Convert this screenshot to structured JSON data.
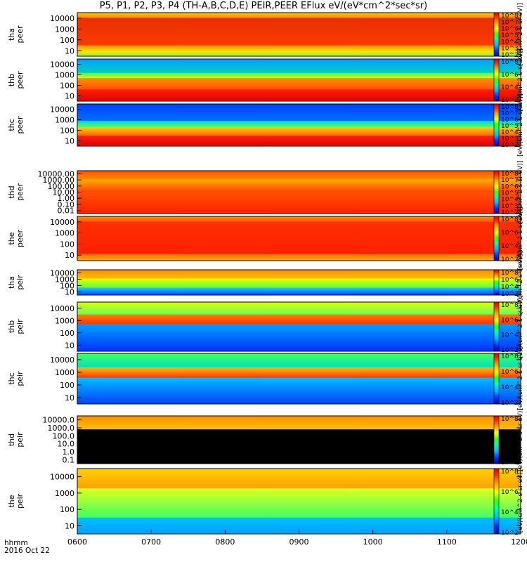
{
  "title": "P5, P1, P2, P3, P4 (TH-A,B,C,D,E) PEIR,PEER EFlux eV/(eV*cm^2*sec*sr)",
  "x_axis": {
    "label_line1": "hhmm",
    "label_line2": "2016 Oct 22",
    "ticks": [
      "0600",
      "0700",
      "0800",
      "0900",
      "1000",
      "1100",
      "1200"
    ]
  },
  "colors": {
    "axis": "#000000",
    "black_mask": "#000000"
  },
  "chart_data": [
    {
      "type": "heatmap",
      "ylabel": "tha peer",
      "yticks": [
        "10000",
        "1000",
        "100",
        "10"
      ],
      "ylog": true,
      "ylim": [
        7,
        20000
      ],
      "colorbar_title": "[eV/(cm^2-s-sr-eV)]",
      "colorbar_ticks": [
        "10^8",
        "10^7",
        "10^6",
        "10^5",
        "10^4",
        "10^3",
        "10^2"
      ],
      "clim_log": [
        2,
        8
      ],
      "xlim": [
        "0600",
        "1200"
      ]
    },
    {
      "type": "heatmap",
      "ylabel": "thb peer",
      "yticks": [
        "10000",
        "1000",
        "100",
        "10"
      ],
      "ylog": true,
      "ylim": [
        7,
        20000
      ],
      "colorbar_title": "[eV/(cm^2-s-sr-eV)]",
      "colorbar_ticks": [
        "10^8",
        "10^6",
        "10^4",
        "10^2"
      ],
      "clim_log": [
        2,
        8
      ],
      "xlim": [
        "0600",
        "1200"
      ]
    },
    {
      "type": "heatmap",
      "ylabel": "thc peer",
      "yticks": [
        "10000",
        "1000",
        "100",
        "10"
      ],
      "ylog": true,
      "ylim": [
        7,
        20000
      ],
      "colorbar_title": "[eV/(cm^2-s-sr-eV)]",
      "colorbar_ticks": [
        "10^8",
        "10^7",
        "10^6",
        "10^5",
        "10^4",
        "10^3",
        "10^2"
      ],
      "clim_log": [
        2,
        8
      ],
      "xlim": [
        "0600",
        "1200"
      ]
    },
    {
      "type": "heatmap",
      "ylabel": "thd peer",
      "yticks": [
        "10000.00",
        "1000.00",
        "100.00",
        "10.00",
        "1.00",
        "0.10",
        "0.01"
      ],
      "ylog": true,
      "ylim": [
        0.008,
        25000
      ],
      "colorbar_title": "[eV/(cm^2-s-sr-eV)]",
      "colorbar_ticks": [
        "10^8",
        "10^7",
        "10^6",
        "10^5",
        "10^4",
        "10^3",
        "10^2"
      ],
      "clim_log": [
        2,
        8
      ],
      "xlim": [
        "0600",
        "1200"
      ]
    },
    {
      "type": "heatmap",
      "ylabel": "the peer",
      "yticks": [
        "10000",
        "1000",
        "100",
        "10"
      ],
      "ylog": true,
      "ylim": [
        6,
        25000
      ],
      "colorbar_title": "[eV/(cm^2-s-sr-eV)]",
      "colorbar_ticks": [
        "10^8",
        "10^6",
        "10^4",
        "10^2"
      ],
      "clim_log": [
        2,
        8
      ],
      "xlim": [
        "0600",
        "1200"
      ]
    },
    {
      "type": "heatmap",
      "ylabel": "tha peir",
      "yticks": [
        "10000",
        "1000",
        "100",
        "10"
      ],
      "ylog": true,
      "ylim": [
        6,
        25000
      ],
      "colorbar_title": "[eV/(cm^2-s-sr-eV)]",
      "colorbar_ticks": [
        "10^8",
        "10^6",
        "10^4",
        "10^2"
      ],
      "clim_log": [
        2,
        8
      ],
      "xlim": [
        "0600",
        "1200"
      ]
    },
    {
      "type": "heatmap",
      "ylabel": "thb peir",
      "yticks": [
        "10000",
        "1000",
        "100",
        "10"
      ],
      "ylog": true,
      "ylim": [
        6,
        25000
      ],
      "colorbar_title": "[eV/(cm^2-s-sr-eV)]",
      "colorbar_ticks": [
        "10^8",
        "10^6",
        "10^4",
        "10^2"
      ],
      "clim_log": [
        2,
        8
      ],
      "xlim": [
        "0600",
        "1200"
      ]
    },
    {
      "type": "heatmap",
      "ylabel": "thc peir",
      "yticks": [
        "10000",
        "1000",
        "100",
        "10"
      ],
      "ylog": true,
      "ylim": [
        6,
        25000
      ],
      "colorbar_title": "[eV/(cm^2-s-sr-eV)]",
      "colorbar_ticks": [
        "10^8",
        "10^6",
        "10^4",
        "10^2"
      ],
      "clim_log": [
        2,
        8
      ],
      "xlim": [
        "0600",
        "1200"
      ]
    },
    {
      "type": "heatmap",
      "ylabel": "thd peir",
      "yticks": [
        "10000.0",
        "1000.0",
        "100.0",
        "10.0",
        "1.0",
        "0.1"
      ],
      "ylog": true,
      "ylim": [
        0.06,
        25000
      ],
      "colorbar_title": "[eV/(cm^2-s-sr-eV)]",
      "colorbar_ticks": [
        "10^8",
        "10^6",
        "10^4",
        "10^2"
      ],
      "clim_log": [
        2,
        8
      ],
      "xlim": [
        "0600",
        "1200"
      ]
    },
    {
      "type": "heatmap",
      "ylabel": "the peir",
      "yticks": [
        "10000",
        "1000",
        "100",
        "10"
      ],
      "ylog": true,
      "ylim": [
        6,
        25000
      ],
      "colorbar_title": "[eV/(cm^2-s-sr-eV)]",
      "colorbar_ticks": [
        "10^8",
        "10^6",
        "10^4",
        "10^2"
      ],
      "clim_log": [
        2,
        8
      ],
      "xlim": [
        "0600",
        "1200"
      ]
    }
  ]
}
